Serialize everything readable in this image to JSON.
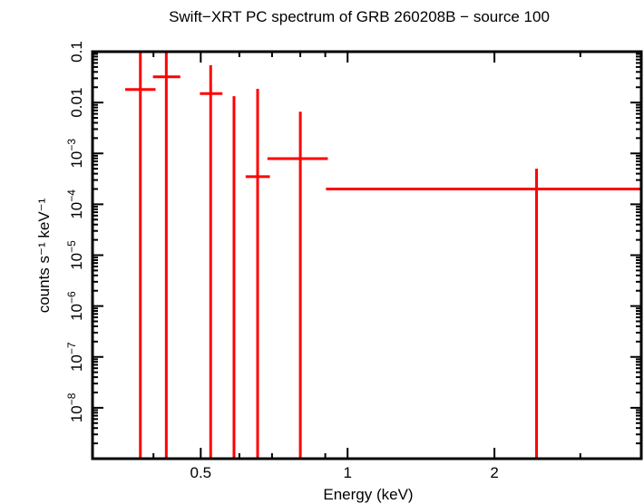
{
  "chart_data": {
    "type": "scatter",
    "title": "Swift−XRT PC spectrum of GRB 260208B − source 100",
    "xlabel": "Energy (keV)",
    "ylabel": "counts s⁻¹ keV⁻¹",
    "xscale": "log",
    "yscale": "log",
    "xlim": [
      0.3,
      4.0
    ],
    "ylim": [
      1e-09,
      0.1
    ],
    "grid": false,
    "series_color": "#ff0000",
    "x_ticks": [
      {
        "value": 0.5,
        "label": "0.5"
      },
      {
        "value": 1,
        "label": "1"
      },
      {
        "value": 2,
        "label": "2"
      }
    ],
    "x_minor_ticks": [
      0.3,
      0.4,
      0.6,
      0.7,
      0.8,
      0.9,
      3,
      4
    ],
    "y_ticks": [
      {
        "value": 0.1,
        "base": "0.1",
        "sup": ""
      },
      {
        "value": 0.01,
        "base": "0.01",
        "sup": ""
      },
      {
        "value": 0.001,
        "base": "10",
        "sup": "−3"
      },
      {
        "value": 0.0001,
        "base": "10",
        "sup": "−4"
      },
      {
        "value": 1e-05,
        "base": "10",
        "sup": "−5"
      },
      {
        "value": 1e-06,
        "base": "10",
        "sup": "−6"
      },
      {
        "value": 1e-07,
        "base": "10",
        "sup": "−7"
      },
      {
        "value": 1e-08,
        "base": "10",
        "sup": "−8"
      }
    ],
    "points": [
      {
        "x": 0.376,
        "xlo": 0.35,
        "xhi": 0.404,
        "y": 0.018,
        "yhi": 0.2
      },
      {
        "x": 0.425,
        "xlo": 0.399,
        "xhi": 0.454,
        "y": 0.032,
        "yhi": 0.2
      },
      {
        "x": 0.524,
        "xlo": 0.498,
        "xhi": 0.554,
        "y": 0.015,
        "yhi": 0.054
      },
      {
        "x": 0.585,
        "xlo": 0.583,
        "xhi": 0.587,
        "y": null,
        "yhi": 0.0133
      },
      {
        "x": 0.654,
        "xlo": 0.618,
        "xhi": 0.693,
        "y": 0.00035,
        "yhi": 0.0186
      },
      {
        "x": 0.8,
        "xlo": 0.685,
        "xhi": 0.911,
        "y": 0.00079,
        "yhi": 0.0066
      },
      {
        "x": 2.44,
        "xlo": 0.903,
        "xhi": 3.97,
        "y": 0.0002,
        "yhi": 0.0005
      }
    ]
  }
}
